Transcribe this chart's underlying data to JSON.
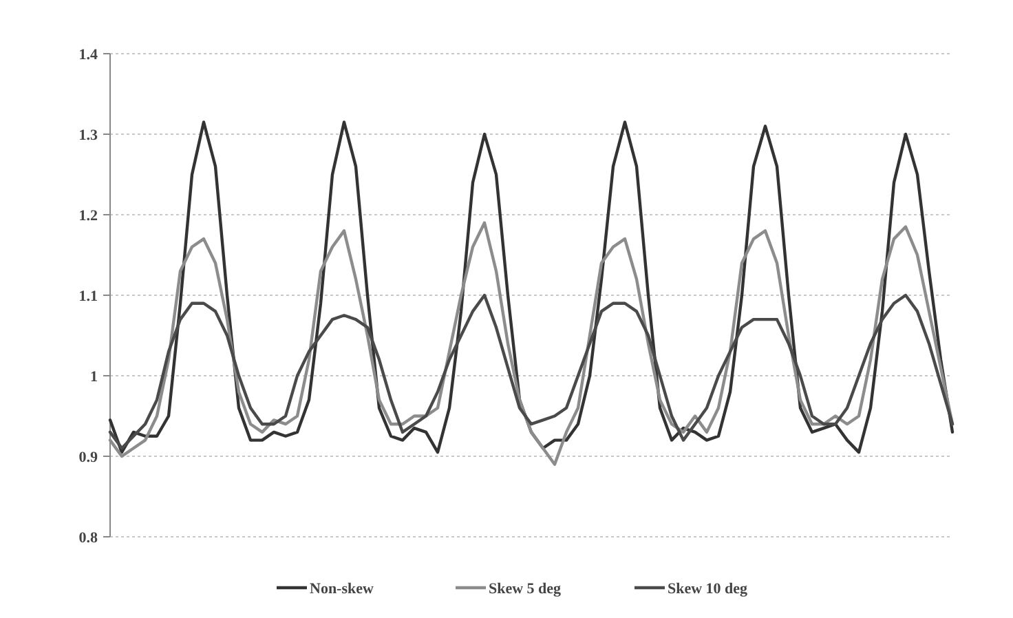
{
  "chart_data": {
    "type": "line",
    "categories": [
      null,
      null,
      null,
      null,
      null,
      null,
      null,
      null,
      null,
      null,
      null,
      null,
      null,
      null,
      null,
      null,
      null,
      null,
      null,
      null,
      null,
      null,
      null,
      null,
      null,
      null,
      null,
      null,
      null,
      null,
      null,
      null,
      null,
      null,
      null,
      null,
      null,
      null,
      null,
      null,
      null,
      null,
      null,
      null,
      null,
      null,
      null,
      null,
      null,
      null,
      null,
      null,
      null,
      null,
      null,
      null,
      null,
      null,
      null,
      null,
      null,
      null,
      null,
      null,
      null,
      null,
      null,
      null,
      null,
      null,
      null,
      null,
      null
    ],
    "series": [
      {
        "name": "Non-skew",
        "color": "#333333",
        "values": [
          0.945,
          0.905,
          0.93,
          0.925,
          0.925,
          0.95,
          1.09,
          1.25,
          1.315,
          1.26,
          1.1,
          0.96,
          0.92,
          0.92,
          0.93,
          0.925,
          0.93,
          0.97,
          1.09,
          1.25,
          1.315,
          1.26,
          1.1,
          0.96,
          0.925,
          0.92,
          0.935,
          0.93,
          0.905,
          0.96,
          1.08,
          1.24,
          1.3,
          1.25,
          1.1,
          0.97,
          0.93,
          0.91,
          0.92,
          0.92,
          0.94,
          1.0,
          1.12,
          1.26,
          1.315,
          1.26,
          1.1,
          0.96,
          0.92,
          0.935,
          0.93,
          0.92,
          0.925,
          0.98,
          1.1,
          1.26,
          1.31,
          1.26,
          1.1,
          0.96,
          0.93,
          0.935,
          0.94,
          0.92,
          0.905,
          0.96,
          1.08,
          1.24,
          1.3,
          1.25,
          1.13,
          1.02,
          0.93
        ]
      },
      {
        "name": "Skew 5 deg",
        "color": "#8c8c8c",
        "values": [
          0.92,
          0.9,
          0.91,
          0.92,
          0.95,
          1.02,
          1.13,
          1.16,
          1.17,
          1.14,
          1.07,
          0.98,
          0.94,
          0.93,
          0.945,
          0.94,
          0.95,
          1.02,
          1.13,
          1.16,
          1.18,
          1.12,
          1.05,
          0.97,
          0.94,
          0.94,
          0.95,
          0.95,
          0.96,
          1.03,
          1.1,
          1.16,
          1.19,
          1.13,
          1.04,
          0.97,
          0.93,
          0.91,
          0.89,
          0.93,
          0.96,
          1.05,
          1.14,
          1.16,
          1.17,
          1.12,
          1.04,
          0.97,
          0.94,
          0.93,
          0.95,
          0.93,
          0.96,
          1.03,
          1.14,
          1.17,
          1.18,
          1.14,
          1.05,
          0.97,
          0.94,
          0.94,
          0.95,
          0.94,
          0.95,
          1.02,
          1.12,
          1.17,
          1.185,
          1.15,
          1.08,
          1.01,
          0.94
        ]
      },
      {
        "name": "Skew 10 deg",
        "color": "#4a4a4a",
        "values": [
          0.93,
          0.91,
          0.925,
          0.94,
          0.97,
          1.03,
          1.07,
          1.09,
          1.09,
          1.08,
          1.05,
          1.0,
          0.96,
          0.94,
          0.94,
          0.95,
          1.0,
          1.03,
          1.05,
          1.07,
          1.075,
          1.07,
          1.06,
          1.02,
          0.97,
          0.93,
          0.94,
          0.95,
          0.98,
          1.02,
          1.05,
          1.08,
          1.1,
          1.06,
          1.01,
          0.96,
          0.94,
          0.945,
          0.95,
          0.96,
          1.0,
          1.04,
          1.08,
          1.09,
          1.09,
          1.08,
          1.05,
          1.0,
          0.95,
          0.92,
          0.94,
          0.96,
          1.0,
          1.03,
          1.06,
          1.07,
          1.07,
          1.07,
          1.04,
          1.0,
          0.95,
          0.94,
          0.94,
          0.96,
          1.0,
          1.04,
          1.07,
          1.09,
          1.1,
          1.08,
          1.04,
          0.99,
          0.94
        ]
      }
    ],
    "ylim": [
      0.8,
      1.4
    ],
    "yticks": [
      0.8,
      0.9,
      1,
      1.1,
      1.2,
      1.3,
      1.4
    ],
    "grid": "y",
    "legend": "bottom",
    "marker": "none",
    "line_style": "solid"
  }
}
